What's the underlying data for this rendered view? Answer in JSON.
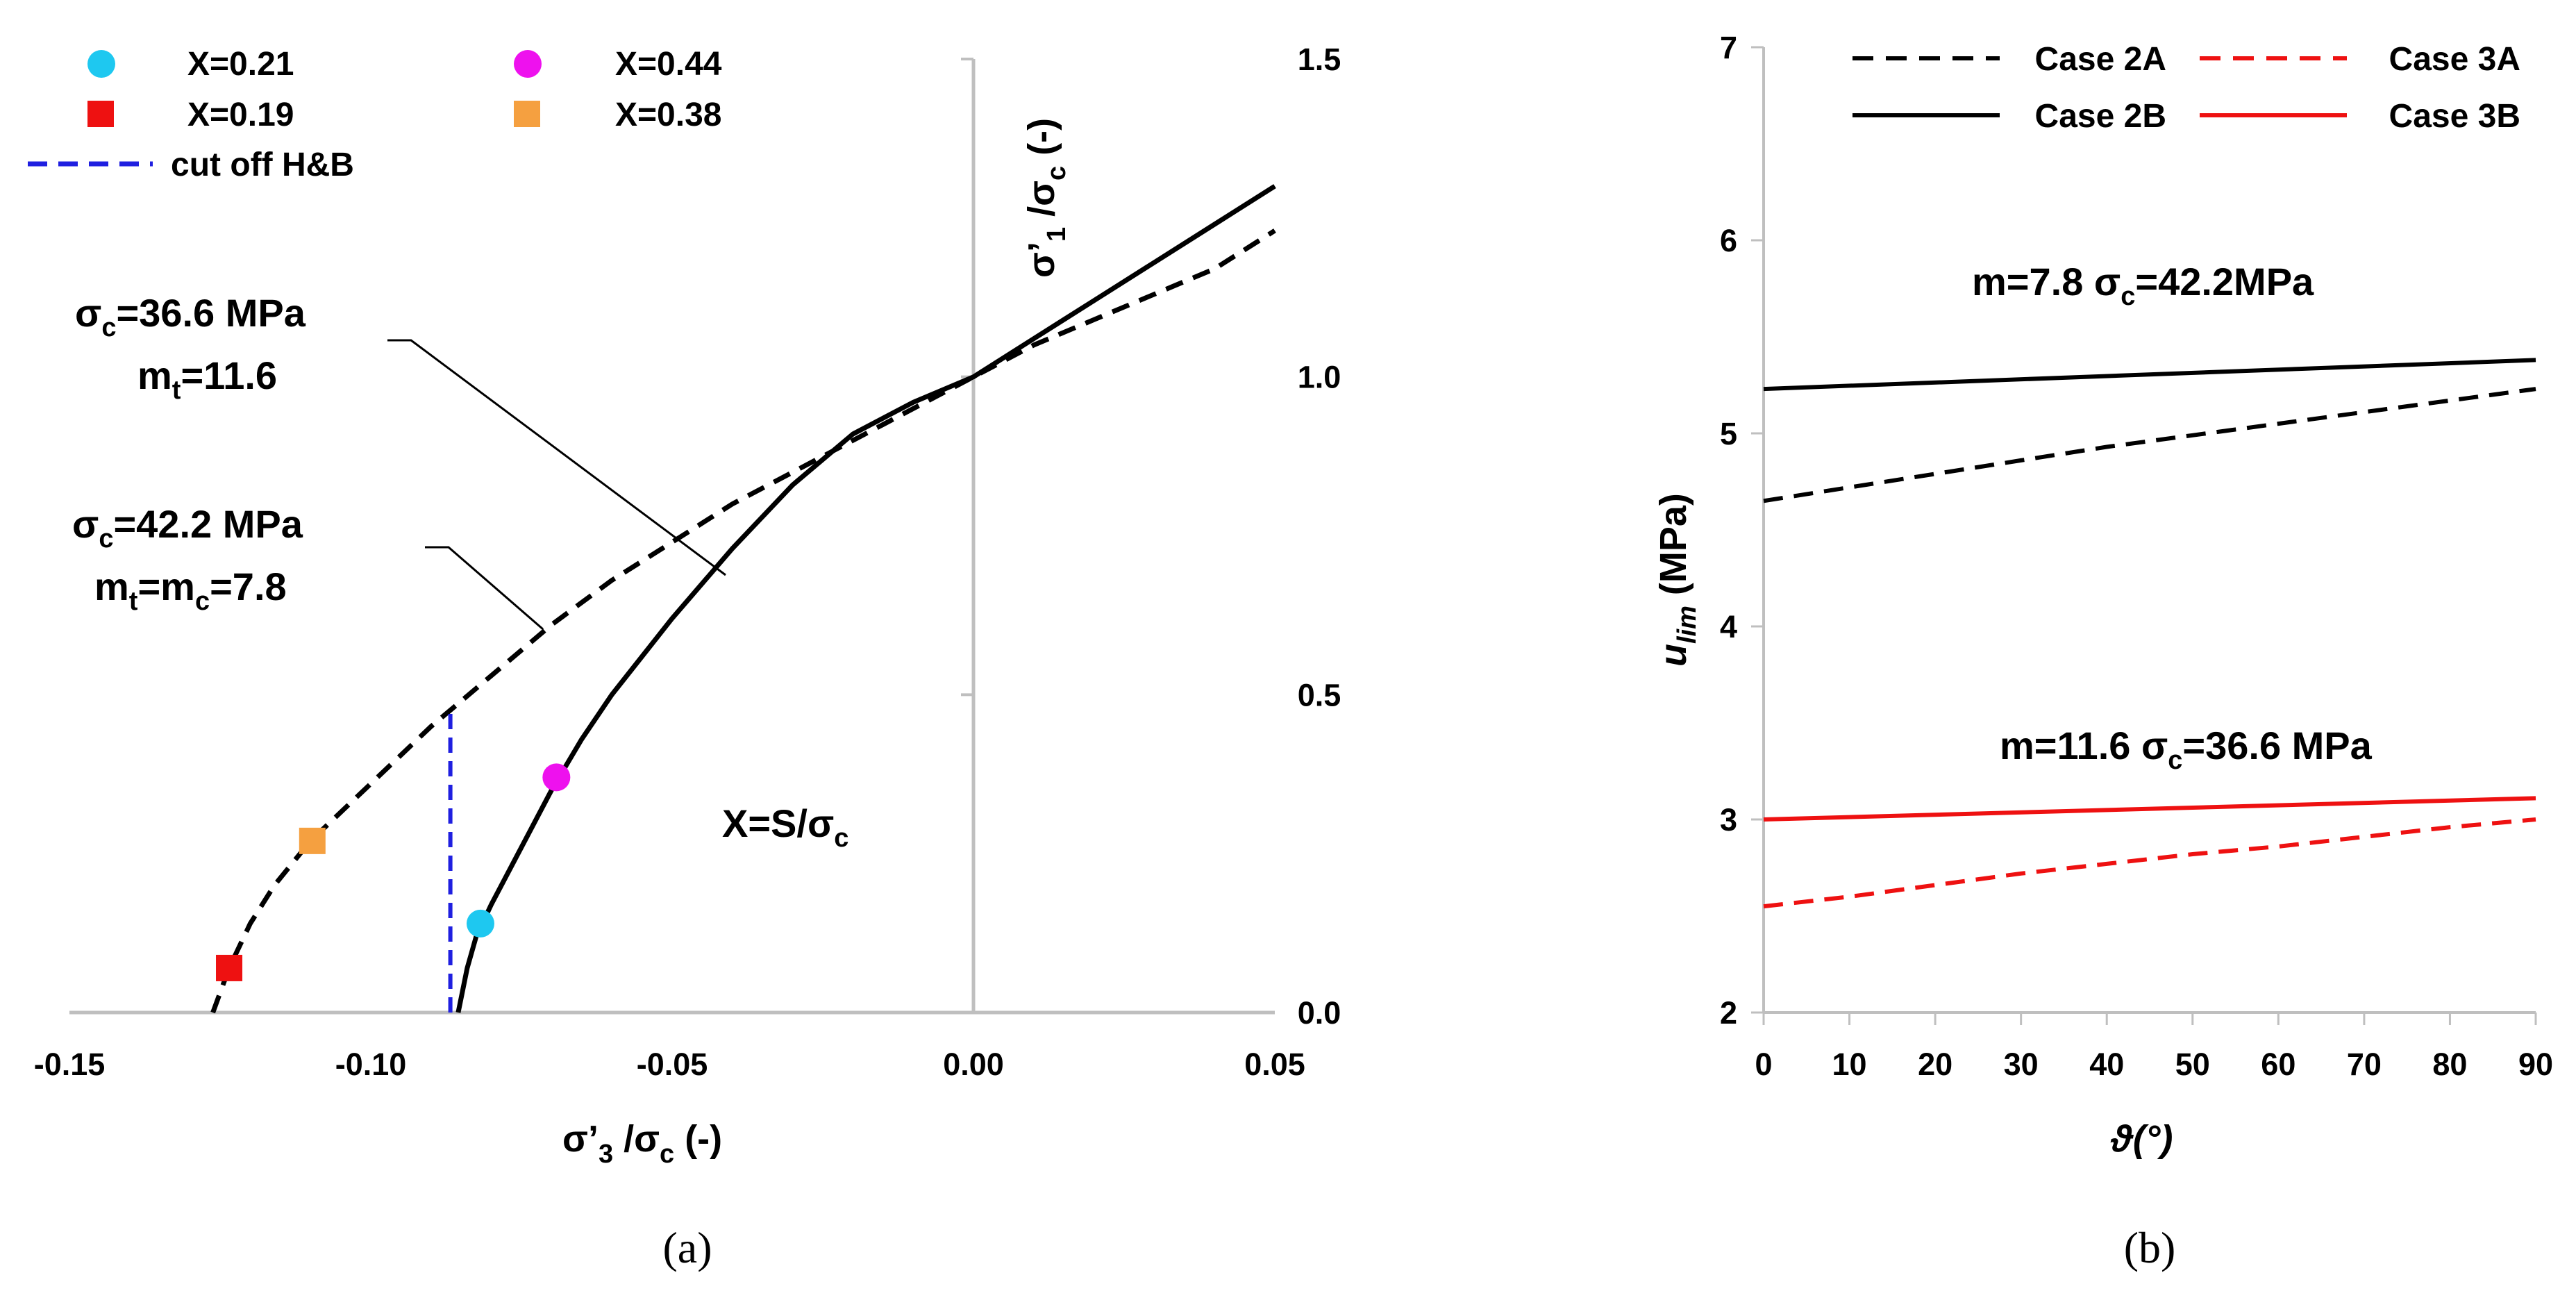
{
  "chart_data": [
    {
      "panel": "a",
      "type": "line",
      "caption": "(a)",
      "xlim": [
        -0.15,
        0.05
      ],
      "ylim": [
        0.0,
        1.5
      ],
      "x_ticks": [
        "-0.15",
        "-0.10",
        "-0.05",
        "0.00",
        "0.05"
      ],
      "y_ticks": [
        "0.0",
        "0.5",
        "1.0",
        "1.5"
      ],
      "xlabel": {
        "main": "σ’",
        "sub": "3",
        "rest": " /σ",
        "sub2": "c",
        "tail": "  (-)"
      },
      "ylabel": {
        "main": "σ’",
        "sub": "1",
        "rest": " /σ",
        "sub2": "c",
        "tail": "  (-)"
      },
      "series": [
        {
          "name": "σc=42.2 MPa, mt=mc=7.8",
          "style": "dashed",
          "color": "#000000",
          "x": [
            -0.1262,
            -0.1235,
            -0.12,
            -0.116,
            -0.11,
            -0.1,
            -0.09,
            -0.08,
            -0.07,
            -0.06,
            -0.05,
            -0.04,
            -0.03,
            -0.02,
            -0.01,
            0.0,
            0.01,
            0.02,
            0.03,
            0.04,
            0.05
          ],
          "y": [
            0.0,
            0.07,
            0.14,
            0.2,
            0.27,
            0.36,
            0.45,
            0.53,
            0.61,
            0.68,
            0.74,
            0.8,
            0.85,
            0.9,
            0.95,
            1.0,
            1.05,
            1.09,
            1.13,
            1.17,
            1.23
          ]
        },
        {
          "name": "σc=36.6 MPa, mt=11.6",
          "style": "solid",
          "color": "#000000",
          "x": [
            -0.0855,
            -0.084,
            -0.0825,
            -0.08,
            -0.075,
            -0.07,
            -0.065,
            -0.06,
            -0.05,
            -0.04,
            -0.03,
            -0.02,
            -0.01,
            0.0,
            0.01,
            0.02,
            0.03,
            0.04,
            0.05
          ],
          "y": [
            0.0,
            0.07,
            0.12,
            0.17,
            0.26,
            0.35,
            0.43,
            0.5,
            0.62,
            0.73,
            0.83,
            0.91,
            0.96,
            1.0,
            1.06,
            1.12,
            1.18,
            1.24,
            1.3
          ]
        },
        {
          "name": "cut off H&B",
          "style": "dashed",
          "color": "#1f1fe0",
          "x": [
            -0.0868,
            -0.0868
          ],
          "y": [
            0.0,
            0.48
          ]
        }
      ],
      "markers": [
        {
          "label": "X=0.21",
          "shape": "circle",
          "color": "#1ec8f0",
          "x": -0.0818,
          "y": 0.14
        },
        {
          "label": "X=0.19",
          "shape": "square",
          "color": "#ee1111",
          "x": -0.1235,
          "y": 0.07
        },
        {
          "label": "X=0.44",
          "shape": "circle",
          "color": "#ee11ee",
          "x": -0.0692,
          "y": 0.37
        },
        {
          "label": "X=0.38",
          "shape": "square",
          "color": "#f5a040",
          "x": -0.1097,
          "y": 0.27
        }
      ],
      "legend": [
        {
          "label": "X=0.21",
          "shape": "circle",
          "color": "#1ec8f0"
        },
        {
          "label": "X=0.44",
          "shape": "circle",
          "color": "#ee11ee"
        },
        {
          "label": "X=0.19",
          "shape": "square",
          "color": "#ee1111"
        },
        {
          "label": "X=0.38",
          "shape": "square",
          "color": "#f5a040"
        },
        {
          "label": "cut off H&B",
          "shape": "dash",
          "color": "#1f1fe0"
        }
      ],
      "annotations": [
        {
          "id": "a1",
          "l1": "σ",
          "l1sub": "c",
          "l1rest": "=36.6 MPa",
          "l2": "m",
          "l2sub": "t",
          "l2rest": "=11.6"
        },
        {
          "id": "a2",
          "l1": "σ",
          "l1sub": "c",
          "l1rest": "=42.2 MPa",
          "l2": "m",
          "l2sub": "t",
          "l2rest": "=m",
          "l2sub2": "c",
          "l2tail": "=7.8"
        },
        {
          "id": "a3",
          "text": "X=S/σ",
          "sub": "c"
        }
      ]
    },
    {
      "panel": "b",
      "type": "line",
      "caption": "(b)",
      "xlim": [
        0,
        90
      ],
      "ylim": [
        2,
        7
      ],
      "x_ticks": [
        "0",
        "10",
        "20",
        "30",
        "40",
        "50",
        "60",
        "70",
        "80",
        "90"
      ],
      "y_ticks": [
        "2",
        "3",
        "4",
        "5",
        "6",
        "7"
      ],
      "xlabel": "ϑ(°)",
      "ylabel": {
        "main": "u",
        "sub": "lim",
        "rest": " (MPa)"
      },
      "series": [
        {
          "name": "Case 2A",
          "style": "dashed",
          "color": "#000000",
          "x": [
            0,
            10,
            20,
            30,
            40,
            50,
            60,
            70,
            80,
            90
          ],
          "y": [
            4.65,
            4.72,
            4.79,
            4.86,
            4.93,
            4.99,
            5.05,
            5.11,
            5.17,
            5.23
          ]
        },
        {
          "name": "Case 2B",
          "style": "solid",
          "color": "#000000",
          "x": [
            0,
            90
          ],
          "y": [
            5.23,
            5.38
          ]
        },
        {
          "name": "Case 3A",
          "style": "dashed",
          "color": "#ee1111",
          "x": [
            0,
            10,
            20,
            30,
            40,
            50,
            60,
            70,
            80,
            90
          ],
          "y": [
            2.55,
            2.6,
            2.66,
            2.72,
            2.77,
            2.82,
            2.86,
            2.91,
            2.96,
            3.0
          ]
        },
        {
          "name": "Case 3B",
          "style": "solid",
          "color": "#ee1111",
          "x": [
            0,
            90
          ],
          "y": [
            3.0,
            3.11
          ]
        }
      ],
      "annotations": [
        {
          "id": "b1",
          "color": "#000000",
          "pre": "m=7.8 σ",
          "sub": "c",
          "post": "=42.2MPa"
        },
        {
          "id": "b2",
          "color": "#ee1111",
          "pre": "m=11.6 σ",
          "sub": "c",
          "post": "=36.6 MPa"
        }
      ]
    }
  ]
}
